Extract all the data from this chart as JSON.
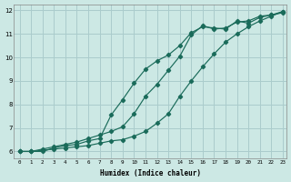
{
  "xlabel": "Humidex (Indice chaleur)",
  "ylabel": "",
  "bg_color": "#cce8e4",
  "grid_color": "#aacccc",
  "line_color": "#1a6b5a",
  "xlim": [
    -0.5,
    23.3
  ],
  "ylim": [
    5.7,
    12.25
  ],
  "xticks": [
    0,
    1,
    2,
    3,
    4,
    5,
    6,
    7,
    8,
    9,
    10,
    11,
    12,
    13,
    14,
    15,
    16,
    17,
    18,
    19,
    20,
    21,
    22,
    23
  ],
  "yticks": [
    6,
    7,
    8,
    9,
    10,
    11,
    12
  ],
  "line1_x": [
    0,
    1,
    2,
    3,
    4,
    5,
    6,
    7,
    8,
    9,
    10,
    11,
    12,
    13,
    14,
    15,
    16,
    17,
    18,
    19,
    20,
    21,
    22,
    23
  ],
  "line1_y": [
    6.0,
    6.0,
    6.0,
    6.15,
    6.25,
    6.3,
    6.45,
    6.55,
    7.55,
    8.2,
    8.9,
    9.5,
    9.85,
    10.1,
    10.5,
    11.05,
    11.3,
    11.25,
    11.2,
    11.55,
    11.45,
    11.7,
    11.8,
    11.9
  ],
  "line2_x": [
    0,
    1,
    2,
    3,
    4,
    5,
    6,
    7,
    8,
    9,
    10,
    11,
    12,
    13,
    14,
    15,
    16,
    17,
    18,
    19,
    20,
    21,
    22,
    23
  ],
  "line2_y": [
    6.0,
    6.0,
    6.1,
    6.2,
    6.3,
    6.4,
    6.55,
    6.7,
    6.85,
    7.05,
    7.6,
    8.35,
    8.85,
    9.45,
    10.05,
    10.95,
    11.35,
    11.2,
    11.25,
    11.5,
    11.55,
    11.75,
    11.8,
    11.95
  ],
  "line3_x": [
    0,
    1,
    2,
    3,
    4,
    5,
    6,
    7,
    8,
    9,
    10,
    11,
    12,
    13,
    14,
    15,
    16,
    17,
    18,
    19,
    20,
    21,
    22,
    23
  ],
  "line3_y": [
    6.0,
    6.0,
    6.05,
    6.1,
    6.15,
    6.2,
    6.25,
    6.35,
    6.45,
    6.5,
    6.65,
    6.85,
    7.2,
    7.6,
    8.35,
    9.0,
    9.6,
    10.15,
    10.65,
    11.0,
    11.3,
    11.55,
    11.75,
    11.95
  ]
}
